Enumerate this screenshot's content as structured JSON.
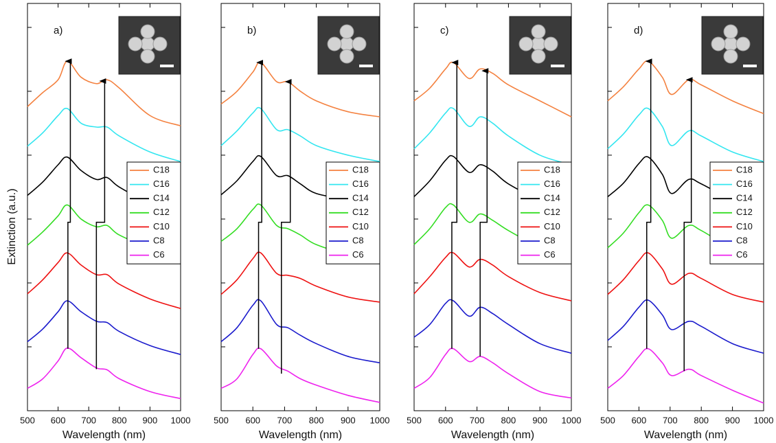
{
  "chart_data": [
    {
      "type": "line",
      "label": "a)",
      "xlabel": "Wavelength (nm)",
      "ylabel": "Extinction (a.u.)",
      "x": [
        500,
        550,
        600,
        630,
        675,
        725,
        760,
        800,
        900,
        1000
      ],
      "xlim": [
        500,
        1000
      ],
      "xticks": [
        500,
        600,
        700,
        800,
        900,
        1000
      ],
      "ylim": [
        0,
        6.375
      ],
      "yticks": [
        1,
        2,
        3,
        4,
        5,
        6
      ],
      "legend": "right",
      "series": [
        {
          "name": "C18",
          "color": "#f4813f",
          "values": [
            4.76,
            4.98,
            5.18,
            5.47,
            5.22,
            5.12,
            5.18,
            5.05,
            4.62,
            4.46
          ]
        },
        {
          "name": "C16",
          "color": "#33e6f0",
          "values": [
            4.14,
            4.35,
            4.62,
            4.73,
            4.5,
            4.44,
            4.44,
            4.3,
            4.05,
            3.9
          ]
        },
        {
          "name": "C14",
          "color": "#000000",
          "values": [
            3.37,
            3.58,
            3.85,
            3.97,
            3.76,
            3.62,
            3.65,
            3.5,
            3.25,
            3.1
          ]
        },
        {
          "name": "C12",
          "color": "#33dd22",
          "values": [
            2.59,
            2.8,
            3.05,
            3.22,
            3.0,
            2.88,
            2.9,
            2.75,
            2.55,
            2.4
          ]
        },
        {
          "name": "C10",
          "color": "#ee1111",
          "values": [
            1.83,
            2.05,
            2.32,
            2.47,
            2.28,
            2.13,
            2.13,
            1.98,
            1.75,
            1.6
          ]
        },
        {
          "name": "C8",
          "color": "#1a1acc",
          "values": [
            1.08,
            1.28,
            1.55,
            1.72,
            1.55,
            1.4,
            1.38,
            1.24,
            1.02,
            0.88
          ]
        },
        {
          "name": "C6",
          "color": "#ee22ee",
          "values": [
            0.35,
            0.5,
            0.78,
            0.98,
            0.83,
            0.67,
            0.64,
            0.5,
            0.3,
            0.19
          ]
        }
      ],
      "peak_guides": [
        {
          "x": [
            632,
            632,
            640,
            640
          ],
          "y": [
            0.97,
            2.95,
            2.95,
            5.47
          ]
        },
        {
          "x": [
            725,
            725,
            752,
            752
          ],
          "y": [
            0.65,
            2.95,
            2.95,
            5.16
          ]
        }
      ]
    },
    {
      "type": "line",
      "label": "b)",
      "xlabel": "Wavelength (nm)",
      "x": [
        500,
        550,
        600,
        625,
        675,
        710,
        750,
        800,
        900,
        1000
      ],
      "xlim": [
        500,
        1000
      ],
      "xticks": [
        500,
        600,
        700,
        800,
        900,
        1000
      ],
      "ylim": [
        0,
        6.375
      ],
      "yticks": [
        1,
        2,
        3,
        4,
        5,
        6
      ],
      "legend": "right",
      "series": [
        {
          "name": "C18",
          "color": "#f4813f",
          "values": [
            4.8,
            5.0,
            5.3,
            5.45,
            5.15,
            5.15,
            5.0,
            4.85,
            4.68,
            4.6
          ]
        },
        {
          "name": "C16",
          "color": "#33e6f0",
          "values": [
            4.15,
            4.38,
            4.66,
            4.73,
            4.4,
            4.4,
            4.3,
            4.15,
            4.0,
            3.9
          ]
        },
        {
          "name": "C14",
          "color": "#000000",
          "values": [
            3.38,
            3.6,
            3.9,
            3.98,
            3.68,
            3.68,
            3.55,
            3.4,
            3.3,
            3.2
          ]
        },
        {
          "name": "C12",
          "color": "#33dd22",
          "values": [
            2.65,
            2.85,
            3.15,
            3.22,
            2.9,
            2.85,
            2.75,
            2.6,
            2.45,
            2.4
          ]
        },
        {
          "name": "C10",
          "color": "#ee1111",
          "values": [
            1.82,
            2.05,
            2.38,
            2.47,
            2.15,
            2.12,
            2.07,
            1.95,
            1.78,
            1.7
          ]
        },
        {
          "name": "C8",
          "color": "#1a1acc",
          "values": [
            1.08,
            1.3,
            1.65,
            1.72,
            1.35,
            1.3,
            1.18,
            1.05,
            0.85,
            0.75
          ]
        },
        {
          "name": "C6",
          "color": "#ee22ee",
          "values": [
            0.35,
            0.5,
            0.88,
            0.97,
            0.7,
            0.62,
            0.5,
            0.4,
            0.24,
            0.13
          ]
        }
      ],
      "peak_guides": [
        {
          "x": [
            618,
            618,
            628,
            628
          ],
          "y": [
            0.97,
            2.95,
            2.95,
            5.45
          ]
        },
        {
          "x": [
            690,
            690,
            718,
            718
          ],
          "y": [
            0.58,
            2.95,
            2.95,
            5.15
          ]
        }
      ]
    },
    {
      "type": "line",
      "label": "c)",
      "xlabel": "Wavelength (nm)",
      "x": [
        500,
        550,
        600,
        625,
        675,
        710,
        750,
        800,
        900,
        1000
      ],
      "xlim": [
        500,
        1000
      ],
      "xticks": [
        500,
        600,
        700,
        800,
        900,
        1000
      ],
      "ylim": [
        0,
        6.375
      ],
      "yticks": [
        1,
        2,
        3,
        4,
        5,
        6
      ],
      "legend": "right",
      "series": [
        {
          "name": "C18",
          "color": "#f4813f",
          "values": [
            4.85,
            5.05,
            5.35,
            5.45,
            5.2,
            5.35,
            5.28,
            5.1,
            4.85,
            4.6
          ]
        },
        {
          "name": "C16",
          "color": "#33e6f0",
          "values": [
            4.1,
            4.35,
            4.66,
            4.73,
            4.45,
            4.6,
            4.5,
            4.3,
            4.0,
            3.85
          ]
        },
        {
          "name": "C14",
          "color": "#000000",
          "values": [
            3.35,
            3.6,
            3.92,
            3.98,
            3.73,
            3.85,
            3.75,
            3.55,
            3.3,
            3.15
          ]
        },
        {
          "name": "C12",
          "color": "#33dd22",
          "values": [
            2.6,
            2.85,
            3.18,
            3.22,
            2.95,
            3.08,
            2.98,
            2.82,
            2.55,
            2.3
          ]
        },
        {
          "name": "C10",
          "color": "#ee1111",
          "values": [
            1.83,
            2.1,
            2.4,
            2.47,
            2.25,
            2.37,
            2.28,
            2.1,
            1.85,
            1.72
          ]
        },
        {
          "name": "C8",
          "color": "#1a1acc",
          "values": [
            1.15,
            1.35,
            1.68,
            1.72,
            1.48,
            1.62,
            1.52,
            1.35,
            1.05,
            0.9
          ]
        },
        {
          "name": "C6",
          "color": "#ee22ee",
          "values": [
            0.35,
            0.52,
            0.88,
            0.97,
            0.77,
            0.85,
            0.75,
            0.58,
            0.3,
            0.2
          ]
        }
      ],
      "peak_guides": [
        {
          "x": [
            620,
            620,
            636,
            636
          ],
          "y": [
            0.97,
            2.95,
            2.95,
            5.45
          ]
        },
        {
          "x": [
            710,
            710,
            732,
            732
          ],
          "y": [
            0.85,
            2.95,
            2.95,
            5.32
          ]
        }
      ]
    },
    {
      "type": "line",
      "label": "d)",
      "xlabel": "Wavelength (nm)",
      "x": [
        500,
        550,
        600,
        630,
        675,
        705,
        760,
        800,
        900,
        1000
      ],
      "xlim": [
        500,
        1000
      ],
      "xticks": [
        500,
        600,
        700,
        800,
        900,
        1000
      ],
      "ylim": [
        0,
        6.375
      ],
      "yticks": [
        1,
        2,
        3,
        4,
        5,
        6
      ],
      "legend": "right",
      "series": [
        {
          "name": "C18",
          "color": "#f4813f",
          "values": [
            4.85,
            5.07,
            5.35,
            5.47,
            5.22,
            4.95,
            5.18,
            5.1,
            4.85,
            4.65
          ]
        },
        {
          "name": "C16",
          "color": "#33e6f0",
          "values": [
            4.1,
            4.33,
            4.63,
            4.73,
            4.45,
            4.15,
            4.38,
            4.3,
            4.05,
            3.9
          ]
        },
        {
          "name": "C14",
          "color": "#000000",
          "values": [
            3.35,
            3.56,
            3.87,
            3.97,
            3.7,
            3.4,
            3.62,
            3.55,
            3.3,
            3.15
          ]
        },
        {
          "name": "C12",
          "color": "#33dd22",
          "values": [
            2.55,
            2.78,
            3.1,
            3.22,
            2.98,
            2.7,
            2.9,
            2.82,
            2.55,
            2.45
          ]
        },
        {
          "name": "C10",
          "color": "#ee1111",
          "values": [
            1.82,
            2.05,
            2.35,
            2.47,
            2.22,
            1.98,
            2.15,
            2.07,
            1.82,
            1.7
          ]
        },
        {
          "name": "C8",
          "color": "#1a1acc",
          "values": [
            1.1,
            1.32,
            1.62,
            1.73,
            1.5,
            1.27,
            1.4,
            1.32,
            1.05,
            0.9
          ]
        },
        {
          "name": "C6",
          "color": "#ee22ee",
          "values": [
            0.35,
            0.55,
            0.85,
            0.97,
            0.75,
            0.55,
            0.65,
            0.55,
            0.32,
            0.12
          ]
        }
      ],
      "peak_guides": [
        {
          "x": [
            625,
            625,
            638,
            638
          ],
          "y": [
            0.97,
            2.95,
            2.95,
            5.47
          ]
        },
        {
          "x": [
            745,
            745,
            768,
            768
          ],
          "y": [
            0.62,
            2.95,
            2.95,
            5.18
          ]
        }
      ]
    }
  ]
}
